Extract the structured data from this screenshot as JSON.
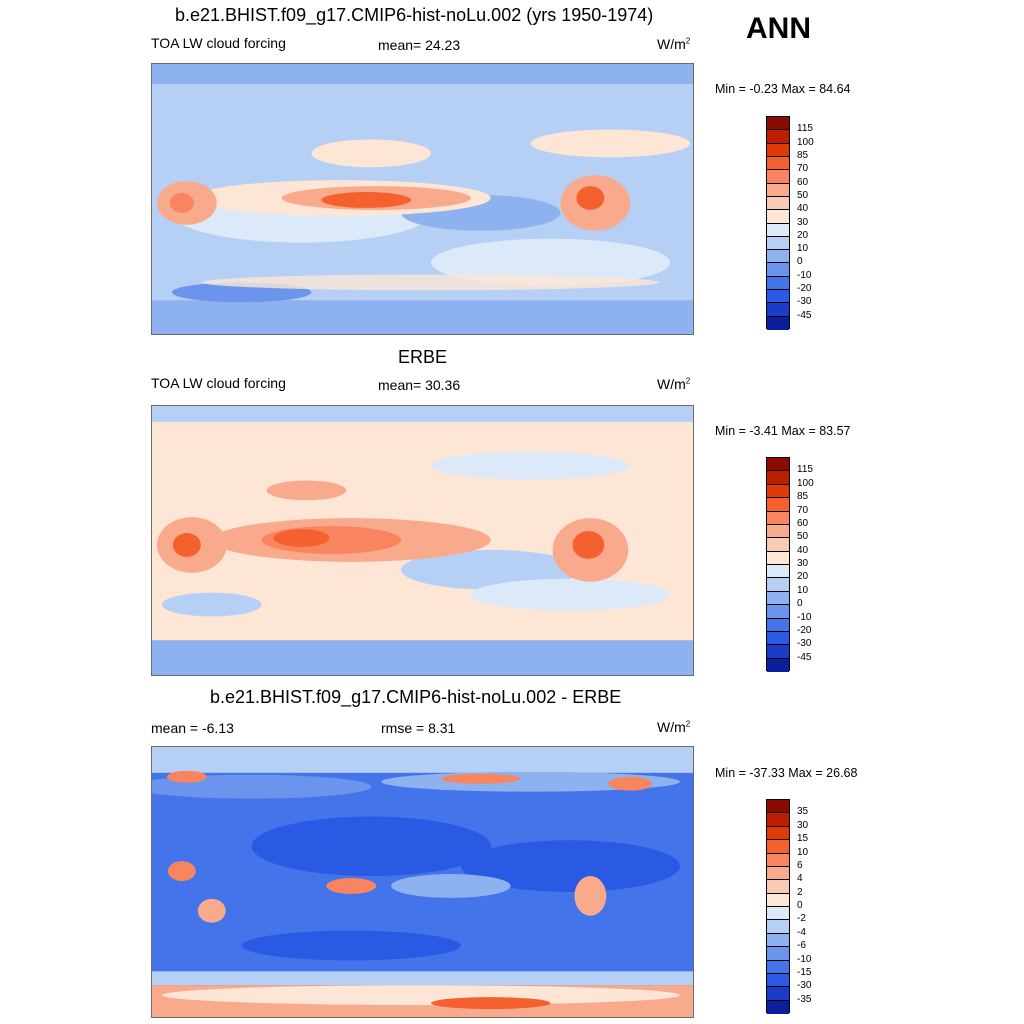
{
  "season": "ANN",
  "panels": [
    {
      "title": "b.e21.BHIST.f09_g17.CMIP6-hist-noLu.002 (yrs 1950-1974)",
      "left_label": "TOA LW cloud forcing",
      "center_label": "mean=  24.23",
      "units_base": "W/m",
      "units_exp": "2",
      "minmax": "Min =  -0.23 Max =  84.64",
      "colorbar_labels": [
        "115",
        "100",
        "85",
        "70",
        "60",
        "50",
        "40",
        "30",
        "20",
        "10",
        "0",
        "-10",
        "-20",
        "-30",
        "-45"
      ],
      "colorbar_colors": [
        "#8c0a00",
        "#bd1e00",
        "#e03a08",
        "#f5602f",
        "#f8855f",
        "#f9aa8c",
        "#f7cbb4",
        "#fde6d6",
        "#dbe9f9",
        "#b5cff5",
        "#8eb2f0",
        "#6b95ec",
        "#4474ea",
        "#2a59e3",
        "#1a3cc8",
        "#0a1f9c"
      ]
    },
    {
      "title": "ERBE",
      "left_label": "TOA LW cloud forcing",
      "center_label": "mean=  30.36",
      "units_base": "W/m",
      "units_exp": "2",
      "minmax": "Min =  -3.41 Max =  83.57",
      "colorbar_labels": [
        "115",
        "100",
        "85",
        "70",
        "60",
        "50",
        "40",
        "30",
        "20",
        "10",
        "0",
        "-10",
        "-20",
        "-30",
        "-45"
      ],
      "colorbar_colors": [
        "#8c0a00",
        "#bd1e00",
        "#e03a08",
        "#f5602f",
        "#f8855f",
        "#f9aa8c",
        "#f7cbb4",
        "#fde6d6",
        "#dbe9f9",
        "#b5cff5",
        "#8eb2f0",
        "#6b95ec",
        "#4474ea",
        "#2a59e3",
        "#1a3cc8",
        "#0a1f9c"
      ]
    },
    {
      "title": "b.e21.BHIST.f09_g17.CMIP6-hist-noLu.002 - ERBE",
      "left_label": "mean =  -6.13",
      "center_label": "rmse =   8.31",
      "units_base": "W/m",
      "units_exp": "2",
      "minmax": "Min = -37.33 Max =  26.68",
      "colorbar_labels": [
        "35",
        "30",
        "15",
        "10",
        "6",
        "4",
        "2",
        "0",
        "-2",
        "-4",
        "-6",
        "-10",
        "-15",
        "-30",
        "-35"
      ],
      "colorbar_colors": [
        "#8c0a00",
        "#bd1e00",
        "#e03a08",
        "#f5602f",
        "#f8855f",
        "#f9aa8c",
        "#f7cbb4",
        "#fde6d6",
        "#dbe9f9",
        "#b5cff5",
        "#8eb2f0",
        "#6b95ec",
        "#4474ea",
        "#2a59e3",
        "#1a3cc8",
        "#0a1f9c"
      ]
    }
  ]
}
